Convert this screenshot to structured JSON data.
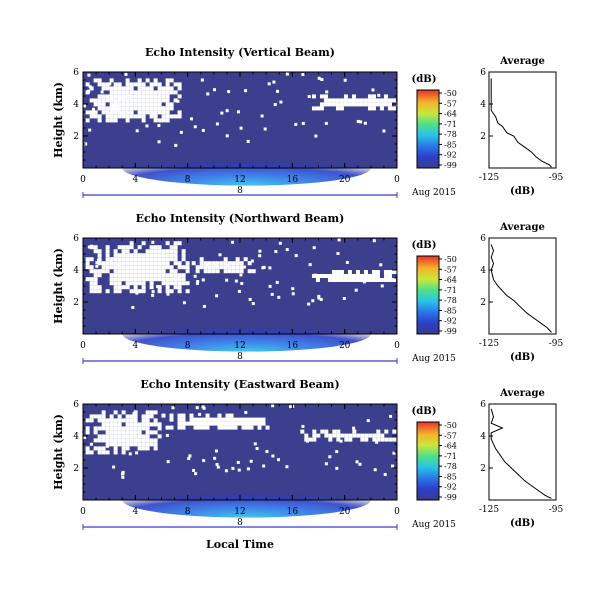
{
  "figure": {
    "date_label": "Aug 2015",
    "xlabel": "Local Time",
    "panels": [
      {
        "title": "Echo Intensity (Vertical Beam)"
      },
      {
        "title": "Echo Intensity (Northward Beam)"
      },
      {
        "title": "Echo Intensity (Eastward Beam)"
      }
    ],
    "profile_title": "Average",
    "cbar_unit": "(dB)",
    "profile_xlabel": "(dB)",
    "day_marker": "8"
  },
  "chart_data": [
    {
      "type": "heatmap",
      "title": "Echo Intensity (Vertical Beam)",
      "xlabel": "",
      "ylabel": "Height (km)",
      "xlim": [
        0,
        24
      ],
      "ylim": [
        0,
        6
      ],
      "xticks": [
        "0",
        "4",
        "8",
        "12",
        "16",
        "20",
        "0"
      ],
      "yticks": [
        "2",
        "4",
        "6"
      ],
      "colorbar": {
        "label": "(dB)",
        "ticks": [
          "-50",
          "-57",
          "-64",
          "-71",
          "-78",
          "-85",
          "-92",
          "-99"
        ],
        "range": [
          -99,
          -50
        ]
      },
      "white_regions": [
        {
          "x": [
            0.2,
            7.5
          ],
          "y": [
            3.0,
            5.6
          ]
        },
        {
          "x": [
            17.5,
            24
          ],
          "y": [
            3.8,
            4.6
          ]
        }
      ],
      "warm_band": {
        "x": [
          5,
          24
        ],
        "peak_x": 12.5,
        "top_km": 0.5
      },
      "profile": {
        "title": "Average",
        "xlabel": "(dB)",
        "xlim": [
          -125,
          -95
        ],
        "xticks": [
          "-125",
          "-95"
        ],
        "yticks": [
          "2",
          "4",
          "6"
        ],
        "points": [
          [
            -124,
            5.6
          ],
          [
            -124,
            4.5
          ],
          [
            -124,
            3.6
          ],
          [
            -122,
            3.2
          ],
          [
            -121,
            2.8
          ],
          [
            -119,
            2.6
          ],
          [
            -117,
            2.2
          ],
          [
            -114,
            2.0
          ],
          [
            -112,
            1.6
          ],
          [
            -109,
            1.3
          ],
          [
            -106,
            1.0
          ],
          [
            -104,
            0.7
          ],
          [
            -101,
            0.4
          ],
          [
            -98,
            0.2
          ],
          [
            -97,
            0.05
          ]
        ]
      }
    },
    {
      "type": "heatmap",
      "title": "Echo Intensity (Northward Beam)",
      "xlabel": "",
      "ylabel": "Height (km)",
      "xlim": [
        0,
        24
      ],
      "ylim": [
        0,
        6
      ],
      "xticks": [
        "0",
        "4",
        "8",
        "12",
        "16",
        "20",
        "0"
      ],
      "yticks": [
        "2",
        "4",
        "6"
      ],
      "colorbar": {
        "label": "(dB)",
        "ticks": [
          "-50",
          "-57",
          "-64",
          "-71",
          "-78",
          "-85",
          "-92",
          "-99"
        ],
        "range": [
          -99,
          -50
        ]
      },
      "white_regions": [
        {
          "x": [
            0.2,
            8
          ],
          "y": [
            2.6,
            5.8
          ]
        },
        {
          "x": [
            8,
            13
          ],
          "y": [
            3.8,
            4.8
          ]
        },
        {
          "x": [
            17.5,
            24
          ],
          "y": [
            3.3,
            4.0
          ]
        }
      ],
      "warm_band": {
        "x": [
          5,
          24
        ],
        "peak_x": 12.5,
        "top_km": 0.5
      },
      "profile": {
        "title": "Average",
        "xlabel": "(dB)",
        "xlim": [
          -125,
          -95
        ],
        "xticks": [
          "-125",
          "-95"
        ],
        "yticks": [
          "2",
          "4",
          "6"
        ],
        "points": [
          [
            -124,
            5.6
          ],
          [
            -123,
            5.2
          ],
          [
            -124,
            4.8
          ],
          [
            -123,
            4.4
          ],
          [
            -124,
            4.0
          ],
          [
            -123,
            3.4
          ],
          [
            -121,
            3.0
          ],
          [
            -119,
            2.7
          ],
          [
            -117,
            2.4
          ],
          [
            -114,
            2.1
          ],
          [
            -111,
            1.7
          ],
          [
            -108,
            1.3
          ],
          [
            -105,
            1.0
          ],
          [
            -102,
            0.7
          ],
          [
            -99,
            0.4
          ],
          [
            -97,
            0.1
          ]
        ]
      }
    },
    {
      "type": "heatmap",
      "title": "Echo Intensity (Eastward Beam)",
      "xlabel": "Local Time",
      "ylabel": "Height (km)",
      "xlim": [
        0,
        24
      ],
      "ylim": [
        0,
        6
      ],
      "xticks": [
        "0",
        "4",
        "8",
        "12",
        "16",
        "20",
        "0"
      ],
      "yticks": [
        "2",
        "4",
        "6"
      ],
      "colorbar": {
        "label": "(dB)",
        "ticks": [
          "-50",
          "-57",
          "-64",
          "-71",
          "-78",
          "-85",
          "-92",
          "-99"
        ],
        "range": [
          -99,
          -50
        ]
      },
      "white_regions": [
        {
          "x": [
            0.2,
            6
          ],
          "y": [
            2.9,
            5.6
          ]
        },
        {
          "x": [
            6,
            14
          ],
          "y": [
            4.6,
            5.4
          ]
        },
        {
          "x": [
            16,
            24
          ],
          "y": [
            3.8,
            4.4
          ]
        }
      ],
      "warm_band": {
        "x": [
          5,
          24
        ],
        "peak_x": 12.5,
        "top_km": 0.5
      },
      "profile": {
        "title": "Average",
        "xlabel": "(dB)",
        "xlim": [
          -125,
          -95
        ],
        "xticks": [
          "-125",
          "-95"
        ],
        "yticks": [
          "2",
          "4",
          "6"
        ],
        "points": [
          [
            -124,
            5.7
          ],
          [
            -123,
            5.2
          ],
          [
            -124,
            4.8
          ],
          [
            -119,
            4.5
          ],
          [
            -124,
            4.2
          ],
          [
            -124,
            3.8
          ],
          [
            -122,
            3.2
          ],
          [
            -120,
            2.8
          ],
          [
            -118,
            2.4
          ],
          [
            -115,
            2.0
          ],
          [
            -112,
            1.6
          ],
          [
            -109,
            1.2
          ],
          [
            -106,
            0.9
          ],
          [
            -103,
            0.6
          ],
          [
            -100,
            0.3
          ],
          [
            -97,
            0.1
          ]
        ]
      }
    }
  ]
}
